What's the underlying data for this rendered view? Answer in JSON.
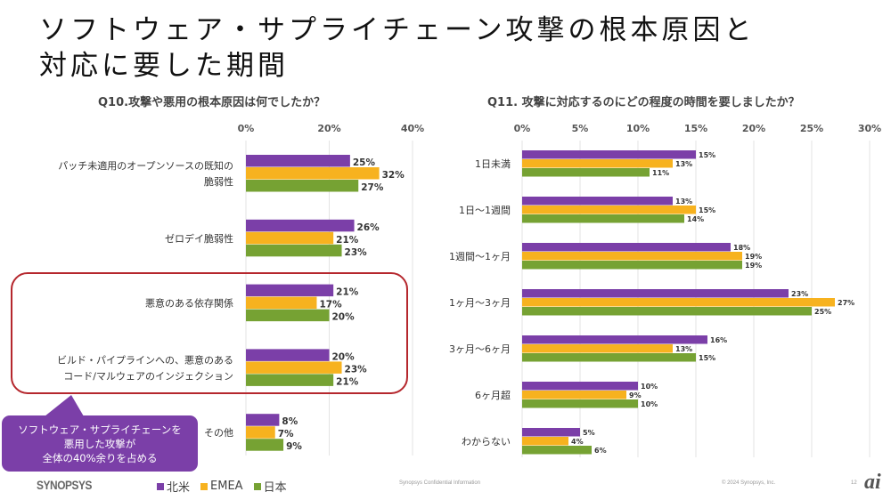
{
  "slide": {
    "title_line1": "ソフトウェア・サプライチェーン攻撃の根本原因と",
    "title_line2": "対応に要した期間",
    "callout_lines": [
      "ソフトウェア・サプライチェーンを",
      "悪用した攻撃が",
      "全体の40%余りを占める"
    ],
    "footer": {
      "logo": "SYNOPSYS",
      "confidential": "Synopsys Confidential Information",
      "copyright": "© 2024 Synopsys, Inc.",
      "page_number": "12",
      "watermark": "ai"
    },
    "legend": [
      {
        "name": "北米",
        "color": "#7b3fa8"
      },
      {
        "name": "EMEA",
        "color": "#f7b21f"
      },
      {
        "name": "日本",
        "color": "#76a233"
      }
    ]
  },
  "chart_data": [
    {
      "type": "bar",
      "orientation": "horizontal",
      "title": "Q10.攻撃や悪用の根本原因は何でしたか？",
      "xlim": [
        0,
        40
      ],
      "xticks": [
        "0%",
        "20%",
        "40%"
      ],
      "xtick_values": [
        0,
        20,
        40
      ],
      "grid": true,
      "legend": "bottom",
      "categories": [
        [
          "パッチ未適用のオープンソースの既知の",
          "脆弱性"
        ],
        [
          "ゼロデイ脆弱性"
        ],
        [
          "悪意のある依存関係"
        ],
        [
          "ビルド・パイプラインへの、悪意のある",
          "コード/マルウェアのインジェクション"
        ],
        [
          "その他"
        ]
      ],
      "highlighted_categories": [
        2,
        3
      ],
      "series": [
        {
          "name": "北米",
          "color": "#7b3fa8",
          "values": [
            25,
            26,
            21,
            20,
            8
          ]
        },
        {
          "name": "EMEA",
          "color": "#f7b21f",
          "values": [
            32,
            21,
            17,
            23,
            7
          ]
        },
        {
          "name": "日本",
          "color": "#76a233",
          "values": [
            27,
            23,
            20,
            21,
            9
          ]
        }
      ]
    },
    {
      "type": "bar",
      "orientation": "horizontal",
      "title": "Q11. 攻撃に対応するのにどの程度の時間を要しましたか？",
      "xlim": [
        0,
        30
      ],
      "xticks": [
        "0%",
        "5%",
        "10%",
        "15%",
        "20%",
        "25%",
        "30%"
      ],
      "xtick_values": [
        0,
        5,
        10,
        15,
        20,
        25,
        30
      ],
      "grid": true,
      "legend": "bottom",
      "categories": [
        [
          "1日未満"
        ],
        [
          "1日～1週間"
        ],
        [
          "1週間～1ヶ月"
        ],
        [
          "1ヶ月～3ヶ月"
        ],
        [
          "3ヶ月～6ヶ月"
        ],
        [
          "6ヶ月超"
        ],
        [
          "わからない"
        ]
      ],
      "series": [
        {
          "name": "北米",
          "color": "#7b3fa8",
          "values": [
            15,
            13,
            18,
            23,
            16,
            10,
            5
          ]
        },
        {
          "name": "EMEA",
          "color": "#f7b21f",
          "values": [
            13,
            15,
            19,
            27,
            13,
            9,
            4
          ]
        },
        {
          "name": "日本",
          "color": "#76a233",
          "values": [
            11,
            14,
            19,
            25,
            15,
            10,
            6
          ]
        }
      ]
    }
  ]
}
